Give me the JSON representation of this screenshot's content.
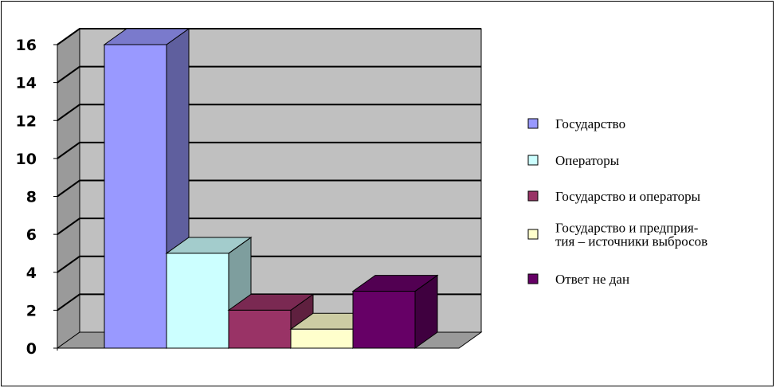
{
  "chart_data": {
    "type": "bar",
    "title": "",
    "xlabel": "",
    "ylabel": "",
    "ylim": [
      0,
      16
    ],
    "yticks": [
      0,
      2,
      4,
      6,
      8,
      10,
      12,
      14,
      16
    ],
    "grid": true,
    "legend_position": "right",
    "categories": [
      "Государство",
      "Операторы",
      "Государство и операторы",
      "Государство и предприя- тия – источники выбросов",
      "Ответ не дан"
    ],
    "values": [
      16,
      5,
      2,
      1,
      3
    ],
    "legend": [
      {
        "lines": [
          "Государство"
        ],
        "color": "#9999ff"
      },
      {
        "lines": [
          "Операторы"
        ],
        "color": "#ccffff"
      },
      {
        "lines": [
          "Государство и операторы"
        ],
        "color": "#993366"
      },
      {
        "lines": [
          "Государство и предприя-",
          "тия – источники выбросов"
        ],
        "color": "#ffffcc"
      },
      {
        "lines": [
          "Ответ не дан"
        ],
        "color": "#660066"
      }
    ]
  }
}
